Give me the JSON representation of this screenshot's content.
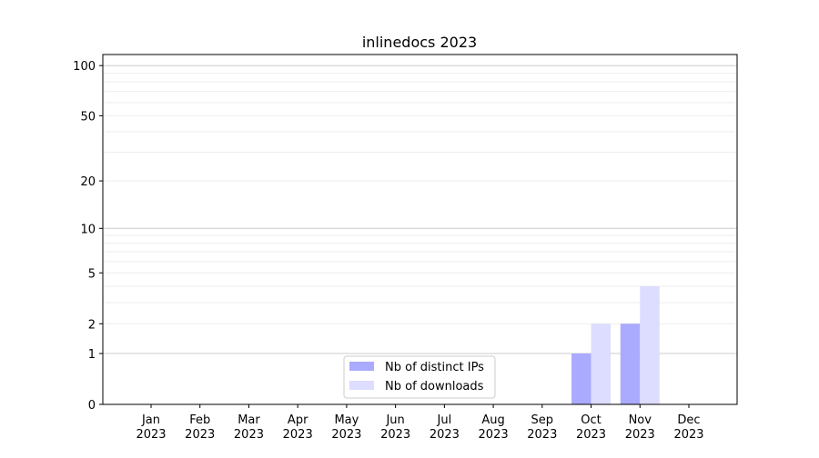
{
  "chart_data": {
    "type": "bar",
    "title": "inlinedocs 2023",
    "xlabel": "",
    "ylabel": "",
    "categories": [
      "Jan\n2023",
      "Feb\n2023",
      "Mar\n2023",
      "Apr\n2023",
      "May\n2023",
      "Jun\n2023",
      "Jul\n2023",
      "Aug\n2023",
      "Sep\n2023",
      "Oct\n2023",
      "Nov\n2023",
      "Dec\n2023"
    ],
    "series": [
      {
        "name": "Nb of distinct IPs",
        "values": [
          0,
          0,
          0,
          0,
          0,
          0,
          0,
          0,
          0,
          1,
          2,
          0
        ],
        "color": "#aaaaff"
      },
      {
        "name": "Nb of downloads",
        "values": [
          0,
          0,
          0,
          0,
          0,
          0,
          0,
          0,
          0,
          2,
          4,
          0
        ],
        "color": "#ddddff"
      }
    ],
    "yscale": "log10(1+y)",
    "yticks": [
      0,
      1,
      2,
      5,
      10,
      20,
      50,
      100
    ],
    "ylim": [
      0,
      117
    ],
    "grid": true,
    "legend": "bottom-center"
  }
}
